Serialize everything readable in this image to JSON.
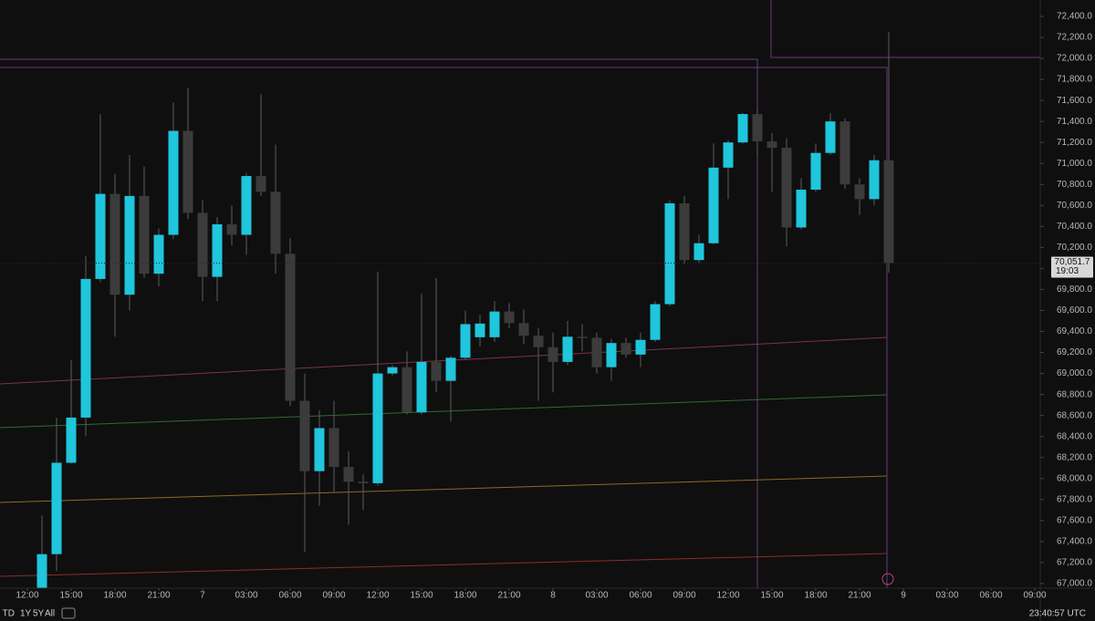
{
  "chart_data": {
    "type": "candlestick",
    "x": [
      1,
      2,
      3,
      4,
      5,
      6,
      7,
      8,
      9,
      10,
      11,
      12,
      13,
      14,
      15,
      16,
      17,
      18,
      19,
      20,
      21,
      22,
      23,
      24,
      25,
      26,
      27,
      28,
      29,
      30,
      31,
      32,
      33,
      34,
      35,
      36,
      37,
      38,
      39,
      40,
      41,
      42,
      43,
      44,
      45,
      46,
      47,
      48,
      49,
      50,
      51,
      52,
      53,
      54,
      55,
      56,
      57,
      58,
      59
    ],
    "open": [
      66960,
      67280,
      68150,
      68580,
      69900,
      70710,
      69750,
      70690,
      69950,
      70320,
      71310,
      70530,
      69920,
      70420,
      70320,
      70880,
      70730,
      70140,
      68740,
      68070,
      68480,
      68110,
      67970,
      67955,
      69000,
      69060,
      68630,
      69110,
      68930,
      69150,
      69345,
      69345,
      69590,
      69480,
      69360,
      69250,
      69110,
      69350,
      69340,
      69060,
      69290,
      69180,
      69320,
      69660,
      70620,
      70080,
      70240,
      70960,
      71200,
      71470,
      71210,
      71150,
      70390,
      70750,
      71100,
      71400,
      70800,
      70660,
      71030
    ],
    "high": [
      67650,
      68580,
      69130,
      70120,
      71470,
      70900,
      71080,
      70970,
      70380,
      71580,
      71720,
      70650,
      70490,
      70600,
      70910,
      71660,
      71180,
      70290,
      69000,
      68650,
      68740,
      68260,
      68040,
      69970,
      69080,
      69210,
      69760,
      69910,
      69170,
      69600,
      69560,
      69690,
      69670,
      69610,
      69430,
      69390,
      69500,
      69470,
      69390,
      69330,
      69340,
      69390,
      69690,
      70650,
      70690,
      70320,
      71190,
      71220,
      71480,
      71530,
      71290,
      71240,
      70860,
      71190,
      71480,
      71430,
      70860,
      71080,
      72250
    ],
    "low": [
      66960,
      67120,
      68140,
      68400,
      69870,
      69350,
      69600,
      69910,
      69830,
      70280,
      70470,
      69690,
      69690,
      70220,
      70130,
      70690,
      69950,
      68690,
      67300,
      67740,
      67870,
      67560,
      67700,
      67930,
      68980,
      68610,
      68610,
      68820,
      68540,
      69130,
      69260,
      69300,
      69430,
      69280,
      68740,
      68820,
      69080,
      69210,
      69000,
      68930,
      69150,
      69060,
      69300,
      69640,
      70040,
      70050,
      70230,
      70660,
      71190,
      71060,
      70730,
      70210,
      70370,
      70730,
      71080,
      70760,
      70510,
      70600,
      69960
    ],
    "close": [
      67280,
      68150,
      68580,
      69900,
      70710,
      69750,
      70690,
      69950,
      70320,
      71310,
      70530,
      69920,
      70420,
      70320,
      70880,
      70730,
      70140,
      68740,
      68070,
      68480,
      68110,
      67970,
      67955,
      69000,
      69060,
      68630,
      69110,
      68930,
      69150,
      69470,
      69475,
      69590,
      69480,
      69360,
      69250,
      69110,
      69350,
      69340,
      69060,
      69290,
      69180,
      69320,
      69660,
      70620,
      70080,
      70240,
      70960,
      71200,
      71470,
      71210,
      71150,
      70390,
      70750,
      71100,
      71400,
      70800,
      70660,
      71030,
      70051.7
    ],
    "up_color": "#1fc6dc",
    "down_color": "#3b3b3b",
    "wick_color": "#5c5c5c",
    "xlim": [
      -1.875,
      69.375
    ],
    "xticks": [
      {
        "value": 0,
        "label": "12:00"
      },
      {
        "value": 3,
        "label": "15:00"
      },
      {
        "value": 6,
        "label": "18:00"
      },
      {
        "value": 9,
        "label": "21:00"
      },
      {
        "value": 12,
        "label": "7"
      },
      {
        "value": 15,
        "label": "03:00"
      },
      {
        "value": 18,
        "label": "06:00"
      },
      {
        "value": 21,
        "label": "09:00"
      },
      {
        "value": 24,
        "label": "12:00"
      },
      {
        "value": 27,
        "label": "15:00"
      },
      {
        "value": 30,
        "label": "18:00"
      },
      {
        "value": 33,
        "label": "21:00"
      },
      {
        "value": 36,
        "label": "8"
      },
      {
        "value": 39,
        "label": "03:00"
      },
      {
        "value": 42,
        "label": "06:00"
      },
      {
        "value": 45,
        "label": "09:00"
      },
      {
        "value": 48,
        "label": "12:00"
      },
      {
        "value": 51,
        "label": "15:00"
      },
      {
        "value": 54,
        "label": "18:00"
      },
      {
        "value": 57,
        "label": "21:00"
      },
      {
        "value": 60,
        "label": "9"
      },
      {
        "value": 63,
        "label": "03:00"
      },
      {
        "value": 66,
        "label": "06:00"
      },
      {
        "value": 69,
        "label": "09:00"
      }
    ],
    "ylim": [
      66956,
      72556
    ],
    "yticks": [
      {
        "value": 67000,
        "label": "67,000.0"
      },
      {
        "value": 67200,
        "label": "67,200.0"
      },
      {
        "value": 67400,
        "label": "67,400.0"
      },
      {
        "value": 67600,
        "label": "67,600.0"
      },
      {
        "value": 67800,
        "label": "67,800.0"
      },
      {
        "value": 68000,
        "label": "68,000.0"
      },
      {
        "value": 68200,
        "label": "68,200.0"
      },
      {
        "value": 68400,
        "label": "68,400.0"
      },
      {
        "value": 68600,
        "label": "68,600.0"
      },
      {
        "value": 68800,
        "label": "68,800.0"
      },
      {
        "value": 69000,
        "label": "69,000.0"
      },
      {
        "value": 69200,
        "label": "69,200.0"
      },
      {
        "value": 69400,
        "label": "69,400.0"
      },
      {
        "value": 69600,
        "label": "69,600.0"
      },
      {
        "value": 69800,
        "label": "69,800.0"
      },
      {
        "value": 70000,
        "label": "70,000.0"
      },
      {
        "value": 70200,
        "label": "70,200.0"
      },
      {
        "value": 70400,
        "label": "70,400.0"
      },
      {
        "value": 70600,
        "label": "70,600.0"
      },
      {
        "value": 70800,
        "label": "70,800.0"
      },
      {
        "value": 71000,
        "label": "71,000.0"
      },
      {
        "value": 71200,
        "label": "71,200.0"
      },
      {
        "value": 71400,
        "label": "71,400.0"
      },
      {
        "value": 71600,
        "label": "71,600.0"
      },
      {
        "value": 71800,
        "label": "71,800.0"
      },
      {
        "value": 72000,
        "label": "72,000.0"
      },
      {
        "value": 72200,
        "label": "72,200.0"
      },
      {
        "value": 72400,
        "label": "72,400.0"
      }
    ],
    "last_price": {
      "value": 70051.7,
      "label": "70,051.7"
    },
    "countdown": "19:03",
    "grid": false
  },
  "toolbar": {
    "ranges": [
      "TD",
      "1Y",
      "5Y",
      "All"
    ],
    "clock": "23:40:57 UTC"
  }
}
